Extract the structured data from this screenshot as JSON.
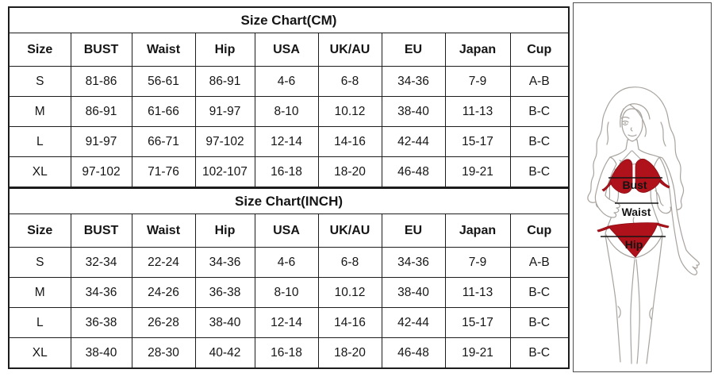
{
  "cm_table": {
    "title": "Size Chart(CM)",
    "headers": [
      "Size",
      "BUST",
      "Waist",
      "Hip",
      "USA",
      "UK/AU",
      "EU",
      "Japan",
      "Cup"
    ],
    "rows": [
      [
        "S",
        "81-86",
        "56-61",
        "86-91",
        "4-6",
        "6-8",
        "34-36",
        "7-9",
        "A-B"
      ],
      [
        "M",
        "86-91",
        "61-66",
        "91-97",
        "8-10",
        "10.12",
        "38-40",
        "11-13",
        "B-C"
      ],
      [
        "L",
        "91-97",
        "66-71",
        "97-102",
        "12-14",
        "14-16",
        "42-44",
        "15-17",
        "B-C"
      ],
      [
        "XL",
        "97-102",
        "71-76",
        "102-107",
        "16-18",
        "18-20",
        "46-48",
        "19-21",
        "B-C"
      ]
    ]
  },
  "inch_table": {
    "title": "Size Chart(INCH)",
    "headers": [
      "Size",
      "BUST",
      "Waist",
      "Hip",
      "USA",
      "UK/AU",
      "EU",
      "Japan",
      "Cup"
    ],
    "rows": [
      [
        "S",
        "32-34",
        "22-24",
        "34-36",
        "4-6",
        "6-8",
        "34-36",
        "7-9",
        "A-B"
      ],
      [
        "M",
        "34-36",
        "24-26",
        "36-38",
        "8-10",
        "10.12",
        "38-40",
        "11-13",
        "B-C"
      ],
      [
        "L",
        "36-38",
        "26-28",
        "38-40",
        "12-14",
        "14-16",
        "42-44",
        "15-17",
        "B-C"
      ],
      [
        "XL",
        "38-40",
        "28-30",
        "40-42",
        "16-18",
        "18-20",
        "46-48",
        "19-21",
        "B-C"
      ]
    ]
  },
  "figure": {
    "labels": {
      "bust": "Bust",
      "waist": "Waist",
      "hip": "Hip"
    },
    "colors": {
      "bikini_red": "#b0121b",
      "outline_gray": "#a8a39e",
      "measure_line": "#141414"
    }
  }
}
